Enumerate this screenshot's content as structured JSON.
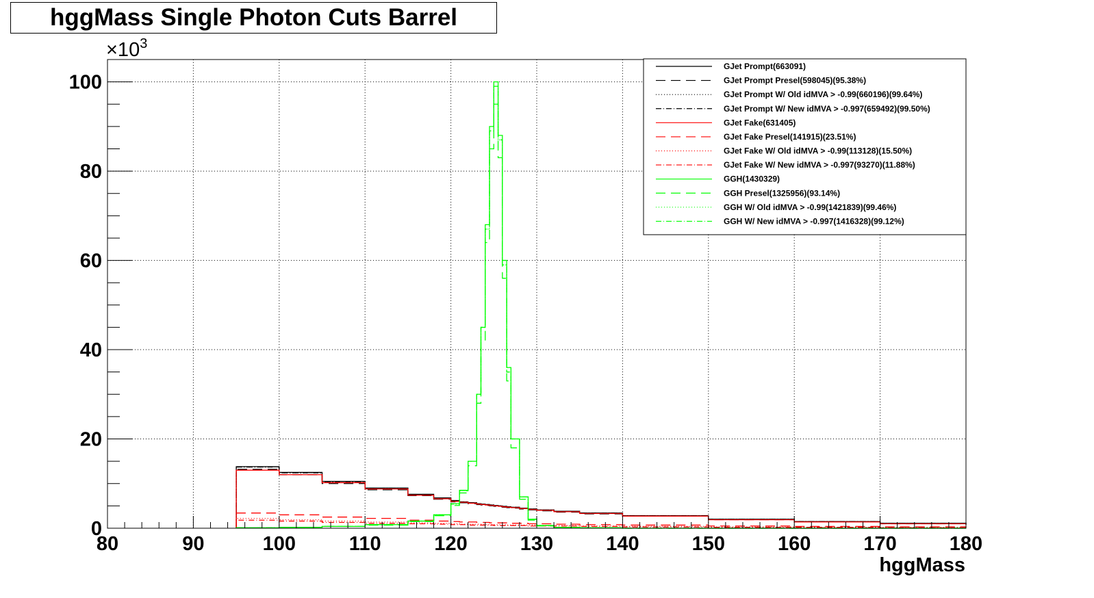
{
  "chart_data": {
    "type": "line",
    "title": "hggMass Single Photon Cuts Barrel",
    "xlabel": "hggMass",
    "ylabel": "",
    "y_multiplier_label": "×10",
    "y_multiplier_exponent": "3",
    "xlim": [
      80,
      180
    ],
    "ylim": [
      0,
      105
    ],
    "x_ticks": [
      "80",
      "90",
      "100",
      "110",
      "120",
      "130",
      "140",
      "150",
      "160",
      "170",
      "180"
    ],
    "y_ticks": [
      "0",
      "20",
      "40",
      "60",
      "80",
      "100"
    ],
    "grid": true,
    "legend_position": "top-right",
    "x": [
      95,
      100,
      105,
      110,
      115,
      118,
      120,
      121,
      122,
      123,
      123.5,
      124,
      124.5,
      125,
      125.5,
      126,
      126.5,
      127,
      128,
      129,
      130,
      132,
      135,
      140,
      150,
      160,
      170,
      180
    ],
    "series": [
      {
        "name": "GJet Prompt(663091)",
        "color": "#000000",
        "dash": "solid",
        "values": [
          13.8,
          12.5,
          10.5,
          9.0,
          7.6,
          6.8,
          6.2,
          5.9,
          5.7,
          5.5,
          5.4,
          5.3,
          5.2,
          5.1,
          5.0,
          4.9,
          4.8,
          4.7,
          4.5,
          4.3,
          4.1,
          3.8,
          3.4,
          2.8,
          2.0,
          1.5,
          1.1,
          0.8
        ]
      },
      {
        "name": "GJet Prompt Presel(598045)(95.38%)",
        "color": "#000000",
        "dash": "long-dash",
        "values": [
          13.2,
          12.0,
          10.0,
          8.6,
          7.3,
          6.5,
          5.9,
          5.7,
          5.5,
          5.3,
          5.2,
          5.1,
          5.0,
          4.9,
          4.8,
          4.7,
          4.6,
          4.5,
          4.3,
          4.1,
          3.9,
          3.6,
          3.2,
          2.7,
          1.9,
          1.4,
          1.0,
          0.8
        ]
      },
      {
        "name": "GJet Prompt W/ Old idMVA > -0.99(660196)(99.64%)",
        "color": "#000000",
        "dash": "dot",
        "values": [
          13.7,
          12.4,
          10.4,
          8.9,
          7.5,
          6.7,
          6.1,
          5.9,
          5.7,
          5.5,
          5.4,
          5.3,
          5.2,
          5.1,
          5.0,
          4.9,
          4.8,
          4.7,
          4.5,
          4.3,
          4.1,
          3.8,
          3.4,
          2.8,
          2.0,
          1.5,
          1.1,
          0.8
        ]
      },
      {
        "name": "GJet Prompt W/ New idMVA > -0.997(659492)(99.50%)",
        "color": "#000000",
        "dash": "dash-dot",
        "values": [
          13.7,
          12.4,
          10.4,
          8.9,
          7.5,
          6.7,
          6.1,
          5.9,
          5.7,
          5.5,
          5.4,
          5.3,
          5.2,
          5.1,
          5.0,
          4.9,
          4.8,
          4.7,
          4.5,
          4.3,
          4.1,
          3.8,
          3.4,
          2.8,
          2.0,
          1.5,
          1.1,
          0.8
        ]
      },
      {
        "name": "GJet Fake(631405)",
        "color": "#ff0000",
        "dash": "solid",
        "values": [
          13.0,
          12.0,
          10.2,
          8.8,
          7.4,
          6.6,
          6.0,
          5.8,
          5.6,
          5.4,
          5.3,
          5.2,
          5.1,
          5.0,
          4.9,
          4.8,
          4.7,
          4.6,
          4.4,
          4.2,
          4.0,
          3.7,
          3.3,
          2.7,
          1.9,
          1.4,
          1.0,
          0.8
        ]
      },
      {
        "name": "GJet Fake Presel(141915)(23.51%)",
        "color": "#ff0000",
        "dash": "long-dash",
        "values": [
          3.4,
          3.0,
          2.5,
          2.2,
          1.8,
          1.6,
          1.5,
          1.4,
          1.4,
          1.3,
          1.3,
          1.3,
          1.2,
          1.2,
          1.2,
          1.2,
          1.1,
          1.1,
          1.1,
          1.0,
          1.0,
          0.9,
          0.8,
          0.7,
          0.5,
          0.4,
          0.3,
          0.2
        ]
      },
      {
        "name": "GJet Fake W/ Old idMVA > -0.99(113128)(15.50%)",
        "color": "#ff0000",
        "dash": "dot",
        "values": [
          2.2,
          1.9,
          1.6,
          1.4,
          1.2,
          1.1,
          1.0,
          0.9,
          0.9,
          0.9,
          0.9,
          0.8,
          0.8,
          0.8,
          0.8,
          0.8,
          0.7,
          0.7,
          0.7,
          0.7,
          0.6,
          0.6,
          0.5,
          0.4,
          0.3,
          0.2,
          0.2,
          0.1
        ]
      },
      {
        "name": "GJet Fake W/ New idMVA > -0.997(93270)(11.88%)",
        "color": "#ff0000",
        "dash": "dash-dot",
        "values": [
          1.8,
          1.6,
          1.3,
          1.1,
          1.0,
          0.9,
          0.8,
          0.8,
          0.7,
          0.7,
          0.7,
          0.7,
          0.7,
          0.6,
          0.6,
          0.6,
          0.6,
          0.6,
          0.6,
          0.5,
          0.5,
          0.5,
          0.4,
          0.3,
          0.2,
          0.2,
          0.1,
          0.1
        ]
      },
      {
        "name": "GGH(1430329)",
        "color": "#00ff00",
        "dash": "solid",
        "values": [
          0.1,
          0.2,
          0.4,
          0.8,
          1.6,
          3.0,
          5.5,
          8.5,
          15,
          30,
          45,
          68,
          90,
          100,
          88,
          60,
          36,
          20,
          7,
          2,
          0.6,
          0.2,
          0.1,
          0.0,
          0.0,
          0.0,
          0.0,
          0.0
        ]
      },
      {
        "name": "GGH Presel(1325956)(93.14%)",
        "color": "#00ff00",
        "dash": "long-dash",
        "values": [
          0.1,
          0.2,
          0.4,
          0.7,
          1.5,
          2.8,
          5.1,
          7.9,
          14,
          28,
          42,
          64,
          85,
          95,
          83,
          56,
          33,
          18,
          6.5,
          1.8,
          0.5,
          0.2,
          0.1,
          0.0,
          0.0,
          0.0,
          0.0,
          0.0
        ]
      },
      {
        "name": "GGH W/ Old idMVA > -0.99(1421839)(99.46%)",
        "color": "#00ff00",
        "dash": "dot",
        "values": [
          0.1,
          0.2,
          0.4,
          0.8,
          1.6,
          3.0,
          5.5,
          8.4,
          15,
          30,
          45,
          67,
          89,
          99,
          87,
          59,
          36,
          20,
          7,
          2,
          0.6,
          0.2,
          0.1,
          0.0,
          0.0,
          0.0,
          0.0,
          0.0
        ]
      },
      {
        "name": "GGH W/ New idMVA > -0.997(1416328)(99.12%)",
        "color": "#00ff00",
        "dash": "dash-dot",
        "values": [
          0.1,
          0.2,
          0.4,
          0.8,
          1.6,
          3.0,
          5.4,
          8.4,
          15,
          30,
          45,
          67,
          89,
          99,
          87,
          59,
          35,
          20,
          7,
          2,
          0.6,
          0.2,
          0.1,
          0.0,
          0.0,
          0.0,
          0.0,
          0.0
        ]
      }
    ]
  }
}
